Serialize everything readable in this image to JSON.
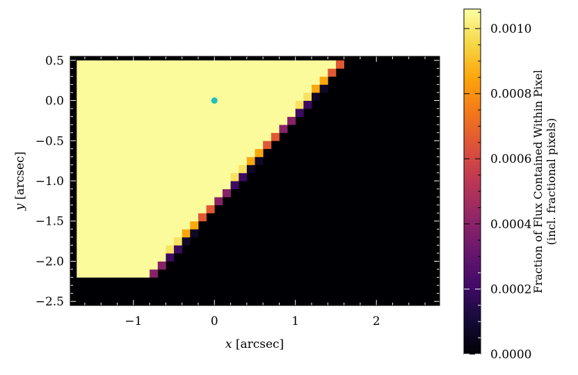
{
  "chart_data": {
    "type": "heatmap",
    "xlabel_var": "x",
    "xlabel_unit": "[arcsec]",
    "ylabel_var": "y",
    "ylabel_unit": "[arcsec]",
    "xlim": [
      -1.78,
      2.78
    ],
    "ylim": [
      -2.55,
      0.55
    ],
    "xticks": [
      -1,
      0,
      1,
      2
    ],
    "yticks": [
      0.5,
      0.0,
      -0.5,
      -1.0,
      -1.5,
      -2.0,
      -2.5
    ],
    "xtick_labels": [
      "−1",
      "0",
      "1",
      "2"
    ],
    "ytick_labels": [
      "0.5",
      "0.0",
      "−0.5",
      "−1.0",
      "−1.5",
      "−2.0",
      "−2.5"
    ],
    "grid": false,
    "colormap": "inferno",
    "pixel_size_arcsec": 0.1,
    "region": {
      "description": "flux-filled aperture region",
      "vertices": [
        [
          -1.7,
          0.5
        ],
        [
          1.6,
          0.5
        ],
        [
          -0.8,
          -2.2
        ],
        [
          -1.7,
          -2.2
        ]
      ],
      "interior_value": 0.00105,
      "edge_value": 0.0005
    },
    "marker": {
      "x": 0.0,
      "y": 0.0,
      "color": "#1fbfbf"
    },
    "colorbar": {
      "label_line1": "Fraction of Flux Contained Within Pixel",
      "label_line2": "(incl. fractional pixels)",
      "range": [
        0.0,
        0.00106
      ],
      "ticks": [
        0.0,
        0.0002,
        0.0004,
        0.0006,
        0.0008,
        0.001
      ],
      "tick_labels": [
        "0.0000",
        "0.0002",
        "0.0004",
        "0.0006",
        "0.0008",
        "0.0010"
      ]
    }
  }
}
